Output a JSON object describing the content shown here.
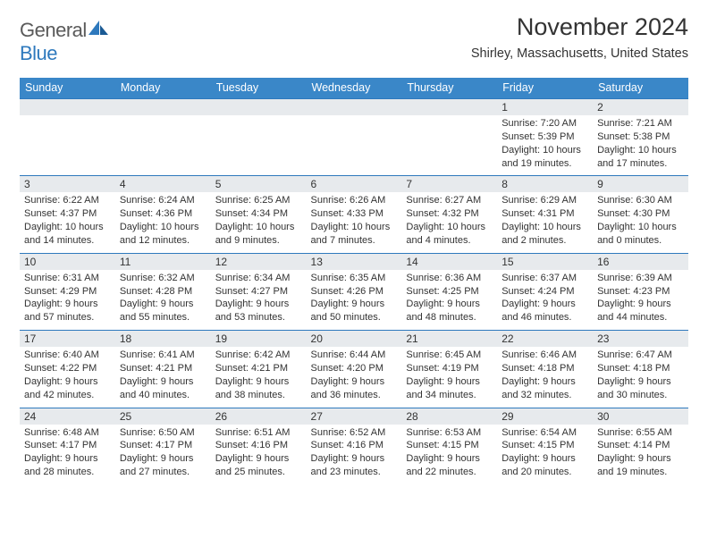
{
  "logo": {
    "general": "General",
    "blue": "Blue"
  },
  "title": "November 2024",
  "location": "Shirley, Massachusetts, United States",
  "colors": {
    "header_bg": "#3a87c8",
    "daynum_bg": "#e7eaed",
    "border": "#2e79bd",
    "text": "#333333"
  },
  "day_headers": [
    "Sunday",
    "Monday",
    "Tuesday",
    "Wednesday",
    "Thursday",
    "Friday",
    "Saturday"
  ],
  "weeks": [
    [
      null,
      null,
      null,
      null,
      null,
      {
        "n": "1",
        "sunrise": "Sunrise: 7:20 AM",
        "sunset": "Sunset: 5:39 PM",
        "day1": "Daylight: 10 hours",
        "day2": "and 19 minutes."
      },
      {
        "n": "2",
        "sunrise": "Sunrise: 7:21 AM",
        "sunset": "Sunset: 5:38 PM",
        "day1": "Daylight: 10 hours",
        "day2": "and 17 minutes."
      }
    ],
    [
      {
        "n": "3",
        "sunrise": "Sunrise: 6:22 AM",
        "sunset": "Sunset: 4:37 PM",
        "day1": "Daylight: 10 hours",
        "day2": "and 14 minutes."
      },
      {
        "n": "4",
        "sunrise": "Sunrise: 6:24 AM",
        "sunset": "Sunset: 4:36 PM",
        "day1": "Daylight: 10 hours",
        "day2": "and 12 minutes."
      },
      {
        "n": "5",
        "sunrise": "Sunrise: 6:25 AM",
        "sunset": "Sunset: 4:34 PM",
        "day1": "Daylight: 10 hours",
        "day2": "and 9 minutes."
      },
      {
        "n": "6",
        "sunrise": "Sunrise: 6:26 AM",
        "sunset": "Sunset: 4:33 PM",
        "day1": "Daylight: 10 hours",
        "day2": "and 7 minutes."
      },
      {
        "n": "7",
        "sunrise": "Sunrise: 6:27 AM",
        "sunset": "Sunset: 4:32 PM",
        "day1": "Daylight: 10 hours",
        "day2": "and 4 minutes."
      },
      {
        "n": "8",
        "sunrise": "Sunrise: 6:29 AM",
        "sunset": "Sunset: 4:31 PM",
        "day1": "Daylight: 10 hours",
        "day2": "and 2 minutes."
      },
      {
        "n": "9",
        "sunrise": "Sunrise: 6:30 AM",
        "sunset": "Sunset: 4:30 PM",
        "day1": "Daylight: 10 hours",
        "day2": "and 0 minutes."
      }
    ],
    [
      {
        "n": "10",
        "sunrise": "Sunrise: 6:31 AM",
        "sunset": "Sunset: 4:29 PM",
        "day1": "Daylight: 9 hours",
        "day2": "and 57 minutes."
      },
      {
        "n": "11",
        "sunrise": "Sunrise: 6:32 AM",
        "sunset": "Sunset: 4:28 PM",
        "day1": "Daylight: 9 hours",
        "day2": "and 55 minutes."
      },
      {
        "n": "12",
        "sunrise": "Sunrise: 6:34 AM",
        "sunset": "Sunset: 4:27 PM",
        "day1": "Daylight: 9 hours",
        "day2": "and 53 minutes."
      },
      {
        "n": "13",
        "sunrise": "Sunrise: 6:35 AM",
        "sunset": "Sunset: 4:26 PM",
        "day1": "Daylight: 9 hours",
        "day2": "and 50 minutes."
      },
      {
        "n": "14",
        "sunrise": "Sunrise: 6:36 AM",
        "sunset": "Sunset: 4:25 PM",
        "day1": "Daylight: 9 hours",
        "day2": "and 48 minutes."
      },
      {
        "n": "15",
        "sunrise": "Sunrise: 6:37 AM",
        "sunset": "Sunset: 4:24 PM",
        "day1": "Daylight: 9 hours",
        "day2": "and 46 minutes."
      },
      {
        "n": "16",
        "sunrise": "Sunrise: 6:39 AM",
        "sunset": "Sunset: 4:23 PM",
        "day1": "Daylight: 9 hours",
        "day2": "and 44 minutes."
      }
    ],
    [
      {
        "n": "17",
        "sunrise": "Sunrise: 6:40 AM",
        "sunset": "Sunset: 4:22 PM",
        "day1": "Daylight: 9 hours",
        "day2": "and 42 minutes."
      },
      {
        "n": "18",
        "sunrise": "Sunrise: 6:41 AM",
        "sunset": "Sunset: 4:21 PM",
        "day1": "Daylight: 9 hours",
        "day2": "and 40 minutes."
      },
      {
        "n": "19",
        "sunrise": "Sunrise: 6:42 AM",
        "sunset": "Sunset: 4:21 PM",
        "day1": "Daylight: 9 hours",
        "day2": "and 38 minutes."
      },
      {
        "n": "20",
        "sunrise": "Sunrise: 6:44 AM",
        "sunset": "Sunset: 4:20 PM",
        "day1": "Daylight: 9 hours",
        "day2": "and 36 minutes."
      },
      {
        "n": "21",
        "sunrise": "Sunrise: 6:45 AM",
        "sunset": "Sunset: 4:19 PM",
        "day1": "Daylight: 9 hours",
        "day2": "and 34 minutes."
      },
      {
        "n": "22",
        "sunrise": "Sunrise: 6:46 AM",
        "sunset": "Sunset: 4:18 PM",
        "day1": "Daylight: 9 hours",
        "day2": "and 32 minutes."
      },
      {
        "n": "23",
        "sunrise": "Sunrise: 6:47 AM",
        "sunset": "Sunset: 4:18 PM",
        "day1": "Daylight: 9 hours",
        "day2": "and 30 minutes."
      }
    ],
    [
      {
        "n": "24",
        "sunrise": "Sunrise: 6:48 AM",
        "sunset": "Sunset: 4:17 PM",
        "day1": "Daylight: 9 hours",
        "day2": "and 28 minutes."
      },
      {
        "n": "25",
        "sunrise": "Sunrise: 6:50 AM",
        "sunset": "Sunset: 4:17 PM",
        "day1": "Daylight: 9 hours",
        "day2": "and 27 minutes."
      },
      {
        "n": "26",
        "sunrise": "Sunrise: 6:51 AM",
        "sunset": "Sunset: 4:16 PM",
        "day1": "Daylight: 9 hours",
        "day2": "and 25 minutes."
      },
      {
        "n": "27",
        "sunrise": "Sunrise: 6:52 AM",
        "sunset": "Sunset: 4:16 PM",
        "day1": "Daylight: 9 hours",
        "day2": "and 23 minutes."
      },
      {
        "n": "28",
        "sunrise": "Sunrise: 6:53 AM",
        "sunset": "Sunset: 4:15 PM",
        "day1": "Daylight: 9 hours",
        "day2": "and 22 minutes."
      },
      {
        "n": "29",
        "sunrise": "Sunrise: 6:54 AM",
        "sunset": "Sunset: 4:15 PM",
        "day1": "Daylight: 9 hours",
        "day2": "and 20 minutes."
      },
      {
        "n": "30",
        "sunrise": "Sunrise: 6:55 AM",
        "sunset": "Sunset: 4:14 PM",
        "day1": "Daylight: 9 hours",
        "day2": "and 19 minutes."
      }
    ]
  ]
}
